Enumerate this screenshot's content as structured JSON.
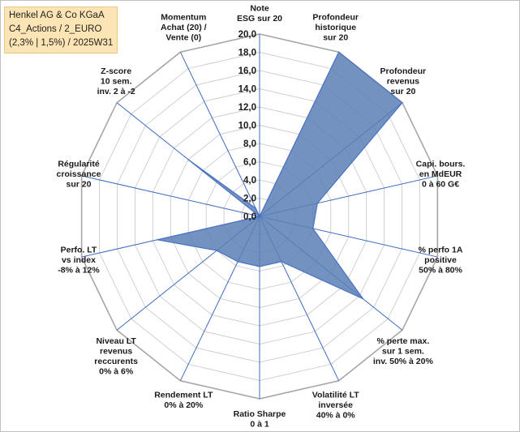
{
  "info_box": {
    "line1": "Henkel AG & Co KGaA",
    "line2": "C4_Actions / 2_EURO",
    "line3": "(2,3% | 1,5%) / 2025W31"
  },
  "chart_data": {
    "type": "radar",
    "range": [
      0,
      20
    ],
    "tick_step": 2,
    "tick_labels": [
      "0,0",
      "2,0",
      "4,0",
      "6,0",
      "8,0",
      "10,0",
      "12,0",
      "14,0",
      "16,0",
      "18,0",
      "20,0"
    ],
    "grid": true,
    "axes": [
      {
        "label": [
          "Note",
          "ESG sur 20"
        ],
        "value": 0
      },
      {
        "label": [
          "Profondeur",
          "historique",
          "sur 20"
        ],
        "value": 20
      },
      {
        "label": [
          "Profondeur",
          "revenus",
          "sur 20"
        ],
        "value": 20
      },
      {
        "label": [
          "Capi. bours.",
          "en MdEUR",
          "0 à 60 G€"
        ],
        "value": 6.5
      },
      {
        "label": [
          "% perfo 1A",
          "positive",
          "50% à 80%"
        ],
        "value": 6
      },
      {
        "label": [
          "% perte max.",
          "sur 1 sem.",
          "inv. 50% à 20%"
        ],
        "value": 14.5
      },
      {
        "label": [
          "Volatilité LT",
          "inversée",
          "40% à 0%"
        ],
        "value": 5.5
      },
      {
        "label": [
          "Ratio Sharpe",
          "0 à 1"
        ],
        "value": 5.5
      },
      {
        "label": [
          "Rendement LT",
          "0% à 20%"
        ],
        "value": 5.5
      },
      {
        "label": [
          "Niveau LT",
          "revenus",
          "reccurents",
          "0% à 6%"
        ],
        "value": 6
      },
      {
        "label": [
          "Perfo. LT",
          "vs index",
          "-8% à 12%"
        ],
        "value": 11.5
      },
      {
        "label": [
          "Régularité",
          "croissance",
          "sur 20"
        ],
        "value": 0
      },
      {
        "label": [
          "Z-score",
          "10 sem.",
          "inv. 2 à -2"
        ],
        "value": 10
      },
      {
        "label": [
          "Momentum",
          "Achat (20) /",
          "Vente (0)"
        ],
        "value": 1
      }
    ],
    "colors": {
      "fill": "#5b7fb5",
      "stroke": "#4a72c4",
      "axis": "#3d6cc0",
      "grid": "#d0d0d0"
    }
  }
}
